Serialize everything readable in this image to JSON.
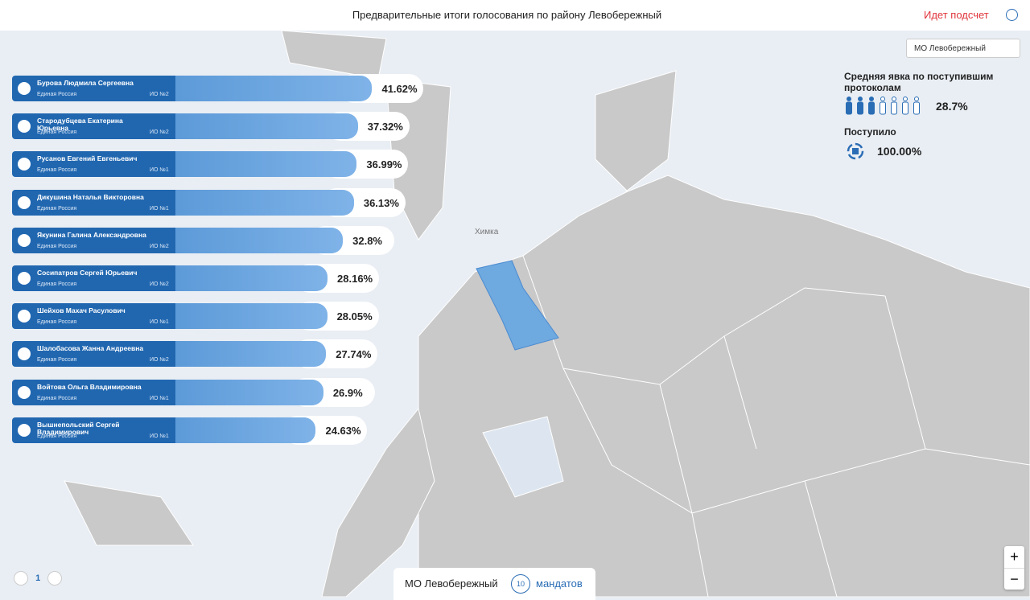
{
  "header": {
    "title": "Предварительные итоги голосования по району Левобережный",
    "status": "Идет подсчет"
  },
  "district_select": "МО Левобережный",
  "turnout": {
    "title": "Средняя явка по поступившим протоколам",
    "value": "28.7%"
  },
  "received": {
    "title": "Поступило",
    "value": "100.00%"
  },
  "map_label": "Химка",
  "candidates": [
    {
      "name": "Бурова Людмила Сергеевна",
      "party": "Единая Россия",
      "district": "ИО №2",
      "value": 41.62,
      "value_label": "41.62%"
    },
    {
      "name": "Стародубцева Екатерина Юрьевна",
      "party": "Единая Россия",
      "district": "ИО №2",
      "value": 37.32,
      "value_label": "37.32%"
    },
    {
      "name": "Русанов Евгений Евгеньевич",
      "party": "Единая Россия",
      "district": "ИО №1",
      "value": 36.99,
      "value_label": "36.99%"
    },
    {
      "name": "Дикушина Наталья Викторовна",
      "party": "Единая Россия",
      "district": "ИО №1",
      "value": 36.13,
      "value_label": "36.13%"
    },
    {
      "name": "Якунина Галина Александровна",
      "party": "Единая Россия",
      "district": "ИО №2",
      "value": 32.8,
      "value_label": "32.8%"
    },
    {
      "name": "Сосипатров Сергей Юрьевич",
      "party": "Единая Россия",
      "district": "ИО №2",
      "value": 28.16,
      "value_label": "28.16%"
    },
    {
      "name": "Шейхов Махач Расулович",
      "party": "Единая Россия",
      "district": "ИО №1",
      "value": 28.05,
      "value_label": "28.05%"
    },
    {
      "name": "Шалобасова Жанна Андреевна",
      "party": "Единая Россия",
      "district": "ИО №2",
      "value": 27.74,
      "value_label": "27.74%"
    },
    {
      "name": "Войтова Ольга Владимировна",
      "party": "Единая Россия",
      "district": "ИО №1",
      "value": 26.9,
      "value_label": "26.9%"
    },
    {
      "name": "Вышнепольский Сергей Владимирович",
      "party": "Единая Россия",
      "district": "ИО №1",
      "value": 24.63,
      "value_label": "24.63%"
    }
  ],
  "pagination": {
    "page": "1"
  },
  "footer": {
    "district": "МО Левобережный",
    "mandates": "10",
    "mandates_label": "мандатов"
  },
  "zoom": {
    "in": "+",
    "out": "−"
  }
}
